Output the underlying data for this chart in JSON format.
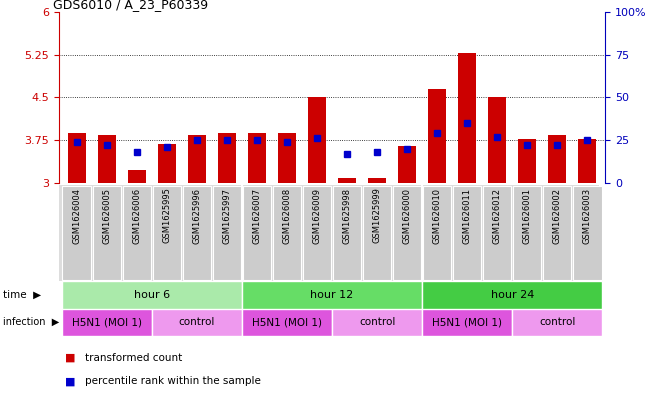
{
  "title": "GDS6010 / A_23_P60339",
  "samples": [
    "GSM1626004",
    "GSM1626005",
    "GSM1626006",
    "GSM1625995",
    "GSM1625996",
    "GSM1625997",
    "GSM1626007",
    "GSM1626008",
    "GSM1626009",
    "GSM1625998",
    "GSM1625999",
    "GSM1626000",
    "GSM1626010",
    "GSM1626011",
    "GSM1626012",
    "GSM1626001",
    "GSM1626002",
    "GSM1626003"
  ],
  "red_values": [
    3.87,
    3.83,
    3.22,
    3.68,
    3.83,
    3.87,
    3.88,
    3.87,
    4.5,
    3.08,
    3.09,
    3.65,
    4.65,
    5.27,
    4.5,
    3.77,
    3.83,
    3.77
  ],
  "blue_values": [
    24,
    22,
    18,
    21,
    25,
    25,
    25,
    24,
    26,
    17,
    18,
    20,
    29,
    35,
    27,
    22,
    22,
    25
  ],
  "y_min": 3.0,
  "y_max": 6.0,
  "y_ticks_red": [
    3.0,
    3.75,
    4.5,
    5.25,
    6.0
  ],
  "y_ticks_red_labels": [
    "3",
    "3.75",
    "4.5",
    "5.25",
    "6"
  ],
  "y_ticks_blue": [
    0,
    25,
    50,
    75,
    100
  ],
  "y_ticks_blue_labels": [
    "0",
    "25",
    "50",
    "75",
    "100%"
  ],
  "dotted_lines_red": [
    3.75,
    4.5,
    5.25
  ],
  "time_groups": [
    {
      "label": "hour 6",
      "start": 0,
      "end": 6,
      "color": "#AAEAAA"
    },
    {
      "label": "hour 12",
      "start": 6,
      "end": 12,
      "color": "#66DD66"
    },
    {
      "label": "hour 24",
      "start": 12,
      "end": 18,
      "color": "#44CC44"
    }
  ],
  "infection_groups": [
    {
      "label": "H5N1 (MOI 1)",
      "start": 0,
      "end": 3,
      "color": "#DD55DD"
    },
    {
      "label": "control",
      "start": 3,
      "end": 6,
      "color": "#EE99EE"
    },
    {
      "label": "H5N1 (MOI 1)",
      "start": 6,
      "end": 9,
      "color": "#DD55DD"
    },
    {
      "label": "control",
      "start": 9,
      "end": 12,
      "color": "#EE99EE"
    },
    {
      "label": "H5N1 (MOI 1)",
      "start": 12,
      "end": 15,
      "color": "#DD55DD"
    },
    {
      "label": "control",
      "start": 15,
      "end": 18,
      "color": "#EE99EE"
    }
  ],
  "bar_color": "#CC0000",
  "blue_color": "#0000CC",
  "bg_color": "#FFFFFF",
  "tick_color_red": "#CC0000",
  "tick_color_blue": "#0000BB",
  "sample_box_color": "#CCCCCC",
  "legend_items": [
    {
      "color": "#CC0000",
      "label": "transformed count"
    },
    {
      "color": "#0000CC",
      "label": "percentile rank within the sample"
    }
  ]
}
